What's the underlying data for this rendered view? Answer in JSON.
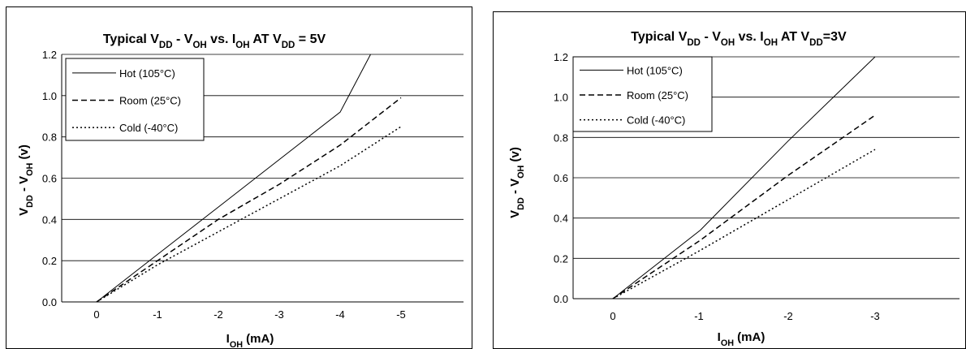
{
  "chart_data": [
    {
      "type": "line",
      "title": {
        "prefix": "Typical V",
        "sub1": "DD",
        "mid1": " - V",
        "sub2": "OH",
        "mid2": " vs. I",
        "sub3": "OH",
        "mid3": " AT V",
        "sub4": "DD",
        "suffix": " = 5V"
      },
      "ylabel": {
        "a": "V",
        "a_sub": "DD",
        "b": " - V",
        "b_sub": "OH",
        "c": " (v)"
      },
      "xlabel": {
        "a": "I",
        "a_sub": "OH",
        "b": " (mA)"
      },
      "x_ticks": [
        "0",
        "-1",
        "-2",
        "-3",
        "-4",
        "-5"
      ],
      "y_ticks": [
        "0.0",
        "0.2",
        "0.4",
        "0.6",
        "0.8",
        "1.0",
        "1.2"
      ],
      "xlim": [
        0,
        -5
      ],
      "ylim": [
        0,
        1.2
      ],
      "grid": "horizontal",
      "legend_position": "top-left",
      "series": [
        {
          "name": "Hot (105°C)",
          "dash": "solid",
          "x": [
            0,
            -1,
            -2,
            -3,
            -4,
            -4.5
          ],
          "y": [
            0.0,
            0.23,
            0.46,
            0.69,
            0.92,
            1.2
          ]
        },
        {
          "name": "Room (25°C)",
          "dash": "dashed",
          "x": [
            0,
            -1,
            -2,
            -3,
            -4,
            -5
          ],
          "y": [
            0.0,
            0.2,
            0.4,
            0.57,
            0.76,
            0.99
          ]
        },
        {
          "name": "Cold (-40°C)",
          "dash": "dotted",
          "x": [
            0,
            -1,
            -2,
            -3,
            -4,
            -5
          ],
          "y": [
            0.0,
            0.18,
            0.34,
            0.5,
            0.66,
            0.85
          ]
        }
      ]
    },
    {
      "type": "line",
      "title": {
        "prefix": "Typical V",
        "sub1": "DD",
        "mid1": " - V",
        "sub2": "OH",
        "mid2": " vs. I",
        "sub3": "OH",
        "mid3": " AT V",
        "sub4": "DD",
        "suffix": "=3V"
      },
      "ylabel": {
        "a": "V",
        "a_sub": "DD",
        "b": " - V",
        "b_sub": "OH",
        "c": " (v)"
      },
      "xlabel": {
        "a": "I",
        "a_sub": "OH",
        "b": " (mA)"
      },
      "x_ticks": [
        "0",
        "-1",
        "-2",
        "-3"
      ],
      "y_ticks": [
        "0.0",
        "0.2",
        "0.4",
        "0.6",
        "0.8",
        "1.0",
        "1.2"
      ],
      "xlim": [
        0,
        -3
      ],
      "ylim": [
        0,
        1.2
      ],
      "grid": "horizontal",
      "legend_position": "top-left",
      "series": [
        {
          "name": "Hot (105°C)",
          "dash": "solid",
          "x": [
            0,
            -1,
            -2,
            -3
          ],
          "y": [
            0.0,
            0.34,
            0.78,
            1.2
          ]
        },
        {
          "name": "Room (25°C)",
          "dash": "dashed",
          "x": [
            0,
            -1,
            -2,
            -3
          ],
          "y": [
            0.0,
            0.29,
            0.61,
            0.91
          ]
        },
        {
          "name": "Cold (-40°C)",
          "dash": "dotted",
          "x": [
            0,
            -1,
            -2,
            -3
          ],
          "y": [
            0.0,
            0.24,
            0.49,
            0.74
          ]
        }
      ]
    }
  ]
}
